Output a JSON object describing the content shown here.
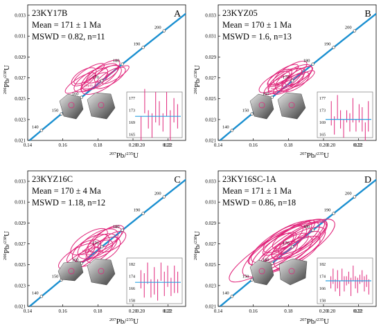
{
  "panels": [
    {
      "sample": "23KY17B",
      "mean": "Mean = 171 ± 1 Ma",
      "mswd": "MSWD = 0.82, n=11",
      "letter": "A",
      "mean_age": 171,
      "inset_yticks": [
        "177",
        "173",
        "169",
        "165"
      ],
      "inset_ylim": [
        164,
        179
      ],
      "scale_label": "100μm",
      "ages": [
        167,
        176,
        170,
        168,
        174,
        172,
        169,
        175,
        168,
        173,
        171
      ],
      "errors": [
        4,
        4,
        3,
        4,
        5,
        4,
        3,
        4,
        5,
        4,
        4
      ]
    },
    {
      "sample": "23KYZ05",
      "mean": "Mean = 170 ± 1 Ma",
      "mswd": "MSWD = 1.6, n=13",
      "letter": "B",
      "mean_age": 170,
      "inset_yticks": [
        "177",
        "173",
        "169",
        "165"
      ],
      "inset_ylim": [
        164,
        179
      ],
      "scale_label": "100μm",
      "ages": [
        172,
        168,
        174,
        170,
        167,
        171,
        169,
        173,
        168,
        172,
        170,
        166,
        171
      ],
      "errors": [
        4,
        3,
        4,
        3,
        3,
        2,
        3,
        4,
        2,
        3,
        4,
        3,
        5
      ]
    },
    {
      "sample": "23KYZ16C",
      "mean": "Mean = 170 ± 4 Ma",
      "mswd": "MSWD = 1.18, n=12",
      "letter": "C",
      "mean_age": 170,
      "inset_yticks": [
        "182",
        "174",
        "166",
        "158"
      ],
      "inset_ylim": [
        156,
        186
      ],
      "scale_label": "100μm",
      "ages": [
        172,
        168,
        176,
        166,
        171,
        165,
        177,
        169,
        174,
        167,
        172,
        170
      ],
      "errors": [
        6,
        8,
        7,
        6,
        9,
        7,
        6,
        8,
        7,
        6,
        9,
        7
      ]
    },
    {
      "sample": "23KY16SC-1A",
      "mean": "Mean = 171 ± 1 Ma",
      "mswd": "MSWD = 0.86, n=18",
      "letter": "D",
      "mean_age": 171,
      "inset_yticks": [
        "182",
        "174",
        "166",
        "158"
      ],
      "inset_ylim": [
        156,
        186
      ],
      "scale_label": "100μm",
      "ages": [
        170,
        174,
        168,
        172,
        166,
        175,
        169,
        171,
        173,
        167,
        176,
        170,
        168,
        172,
        174,
        169,
        171,
        167
      ],
      "errors": [
        4,
        5,
        4,
        6,
        5,
        4,
        5,
        3,
        4,
        6,
        5,
        4,
        5,
        3,
        4,
        5,
        4,
        5
      ]
    }
  ],
  "xaxis": {
    "ticks": [
      "0.14",
      "0.16",
      "0.18",
      "0.20",
      "0.22"
    ],
    "label": "²⁰⁷Pb/²³⁵U",
    "label_main": "Pb/",
    "label_sup1": "207",
    "label_sup2": "235",
    "label_end": "U"
  },
  "yaxis": {
    "ticks": [
      "0.021",
      "0.023",
      "0.025",
      "0.027",
      "0.029",
      "0.031",
      "0.033"
    ],
    "label": "²⁰⁶Pb/²³⁸U",
    "label_main": "Pb/",
    "label_sup1": "206",
    "label_sup2": "238",
    "label_end": "U"
  },
  "inset_xticks": [
    "0.20",
    "0.22"
  ],
  "concordia_labels": [
    "140",
    "150",
    "160",
    "170",
    "180",
    "190",
    "200"
  ],
  "chart_data": [
    {
      "type": "scatter",
      "title": "23KY17B",
      "xlabel": "²⁰⁷Pb/²³⁵U",
      "ylabel": "²⁰⁶Pb/²³⁸U",
      "xlim": [
        0.14,
        0.23
      ],
      "ylim": [
        0.021,
        0.034
      ],
      "concordia_ages": [
        140,
        150,
        160,
        170,
        180,
        190,
        200
      ],
      "ellipses": [
        {
          "x": 0.17,
          "y": 0.0265,
          "rx": 0.01,
          "ry": 0.0005
        },
        {
          "x": 0.176,
          "y": 0.0268,
          "rx": 0.011,
          "ry": 0.0007
        },
        {
          "x": 0.181,
          "y": 0.0271,
          "rx": 0.012,
          "ry": 0.0008
        },
        {
          "x": 0.185,
          "y": 0.0274,
          "rx": 0.008,
          "ry": 0.0005
        },
        {
          "x": 0.187,
          "y": 0.027,
          "rx": 0.01,
          "ry": 0.0006
        },
        {
          "x": 0.178,
          "y": 0.0266,
          "rx": 0.009,
          "ry": 0.0005
        },
        {
          "x": 0.183,
          "y": 0.0276,
          "rx": 0.011,
          "ry": 0.0006
        },
        {
          "x": 0.172,
          "y": 0.0271,
          "rx": 0.008,
          "ry": 0.0006
        },
        {
          "x": 0.19,
          "y": 0.0273,
          "rx": 0.009,
          "ry": 0.0004
        },
        {
          "x": 0.175,
          "y": 0.0274,
          "rx": 0.01,
          "ry": 0.0005
        },
        {
          "x": 0.182,
          "y": 0.0268,
          "rx": 0.013,
          "ry": 0.0009
        }
      ],
      "mean_age": 171
    },
    {
      "type": "scatter",
      "title": "23KYZ05",
      "xlabel": "²⁰⁷Pb/²³⁵U",
      "ylabel": "²⁰⁶Pb/²³⁸U",
      "xlim": [
        0.14,
        0.23
      ],
      "ylim": [
        0.021,
        0.034
      ],
      "concordia_ages": [
        140,
        150,
        160,
        170,
        180,
        190,
        200
      ],
      "ellipses": [
        {
          "x": 0.172,
          "y": 0.0266,
          "rx": 0.01,
          "ry": 0.0006
        },
        {
          "x": 0.178,
          "y": 0.0268,
          "rx": 0.011,
          "ry": 0.0007
        },
        {
          "x": 0.183,
          "y": 0.027,
          "rx": 0.012,
          "ry": 0.0008
        },
        {
          "x": 0.186,
          "y": 0.0272,
          "rx": 0.009,
          "ry": 0.0005
        },
        {
          "x": 0.18,
          "y": 0.0264,
          "rx": 0.01,
          "ry": 0.0005
        },
        {
          "x": 0.175,
          "y": 0.027,
          "rx": 0.008,
          "ry": 0.0005
        },
        {
          "x": 0.184,
          "y": 0.0266,
          "rx": 0.009,
          "ry": 0.0006
        },
        {
          "x": 0.188,
          "y": 0.0269,
          "rx": 0.008,
          "ry": 0.0004
        },
        {
          "x": 0.177,
          "y": 0.0273,
          "rx": 0.01,
          "ry": 0.0005
        },
        {
          "x": 0.181,
          "y": 0.0275,
          "rx": 0.011,
          "ry": 0.0006
        },
        {
          "x": 0.174,
          "y": 0.0263,
          "rx": 0.009,
          "ry": 0.0005
        },
        {
          "x": 0.179,
          "y": 0.0267,
          "rx": 0.012,
          "ry": 0.0007
        },
        {
          "x": 0.185,
          "y": 0.0271,
          "rx": 0.01,
          "ry": 0.0005
        }
      ],
      "mean_age": 170
    },
    {
      "type": "scatter",
      "title": "23KYZ16C",
      "xlabel": "²⁰⁷Pb/²³⁵U",
      "ylabel": "²⁰⁶Pb/²³⁸U",
      "xlim": [
        0.14,
        0.23
      ],
      "ylim": [
        0.021,
        0.034
      ],
      "concordia_ages": [
        140,
        150,
        160,
        170,
        180,
        190,
        200
      ],
      "ellipses": [
        {
          "x": 0.168,
          "y": 0.0258,
          "rx": 0.012,
          "ry": 0.0007
        },
        {
          "x": 0.172,
          "y": 0.0262,
          "rx": 0.011,
          "ry": 0.0008
        },
        {
          "x": 0.176,
          "y": 0.0266,
          "rx": 0.012,
          "ry": 0.0009
        },
        {
          "x": 0.18,
          "y": 0.027,
          "rx": 0.013,
          "ry": 0.001
        },
        {
          "x": 0.184,
          "y": 0.0274,
          "rx": 0.011,
          "ry": 0.0008
        },
        {
          "x": 0.186,
          "y": 0.0277,
          "rx": 0.01,
          "ry": 0.0007
        },
        {
          "x": 0.178,
          "y": 0.0261,
          "rx": 0.012,
          "ry": 0.0008
        },
        {
          "x": 0.182,
          "y": 0.0268,
          "rx": 0.01,
          "ry": 0.0009
        },
        {
          "x": 0.17,
          "y": 0.0254,
          "rx": 0.013,
          "ry": 0.0006
        },
        {
          "x": 0.188,
          "y": 0.0272,
          "rx": 0.009,
          "ry": 0.0007
        },
        {
          "x": 0.175,
          "y": 0.0272,
          "rx": 0.012,
          "ry": 0.0008
        },
        {
          "x": 0.183,
          "y": 0.0264,
          "rx": 0.011,
          "ry": 0.0009
        }
      ],
      "mean_age": 170
    },
    {
      "type": "scatter",
      "title": "23KY16SC-1A",
      "xlabel": "²⁰⁷Pb/²³⁵U",
      "ylabel": "²⁰⁶Pb/²³⁸U",
      "xlim": [
        0.14,
        0.23
      ],
      "ylim": [
        0.021,
        0.034
      ],
      "concordia_ages": [
        140,
        150,
        160,
        170,
        180,
        190,
        200
      ],
      "ellipses": [
        {
          "x": 0.172,
          "y": 0.0262,
          "rx": 0.03,
          "ry": 0.0012
        },
        {
          "x": 0.178,
          "y": 0.0266,
          "rx": 0.028,
          "ry": 0.0014
        },
        {
          "x": 0.18,
          "y": 0.027,
          "rx": 0.024,
          "ry": 0.0011
        },
        {
          "x": 0.184,
          "y": 0.0268,
          "rx": 0.026,
          "ry": 0.0013
        },
        {
          "x": 0.176,
          "y": 0.0272,
          "rx": 0.02,
          "ry": 0.001
        },
        {
          "x": 0.182,
          "y": 0.0264,
          "rx": 0.022,
          "ry": 0.0012
        },
        {
          "x": 0.186,
          "y": 0.0273,
          "rx": 0.018,
          "ry": 0.0009
        },
        {
          "x": 0.174,
          "y": 0.0268,
          "rx": 0.019,
          "ry": 0.001
        },
        {
          "x": 0.188,
          "y": 0.0276,
          "rx": 0.016,
          "ry": 0.0008
        },
        {
          "x": 0.17,
          "y": 0.0265,
          "rx": 0.015,
          "ry": 0.0008
        },
        {
          "x": 0.179,
          "y": 0.026,
          "rx": 0.017,
          "ry": 0.0009
        },
        {
          "x": 0.183,
          "y": 0.0279,
          "rx": 0.014,
          "ry": 0.0007
        },
        {
          "x": 0.177,
          "y": 0.0275,
          "rx": 0.013,
          "ry": 0.0008
        },
        {
          "x": 0.185,
          "y": 0.0262,
          "rx": 0.015,
          "ry": 0.0009
        },
        {
          "x": 0.181,
          "y": 0.0268,
          "rx": 0.012,
          "ry": 0.0007
        },
        {
          "x": 0.175,
          "y": 0.027,
          "rx": 0.011,
          "ry": 0.0006
        },
        {
          "x": 0.187,
          "y": 0.0269,
          "rx": 0.013,
          "ry": 0.0007
        },
        {
          "x": 0.173,
          "y": 0.0258,
          "rx": 0.014,
          "ry": 0.0008
        }
      ],
      "mean_age": 171
    }
  ],
  "colors": {
    "concordia": "#1a8fd0",
    "ellipse": "#e0247a",
    "inset_bar": "#e0247a",
    "mean_line": "#2aa0e0",
    "frame": "#000000",
    "inset_border": "#666666"
  }
}
